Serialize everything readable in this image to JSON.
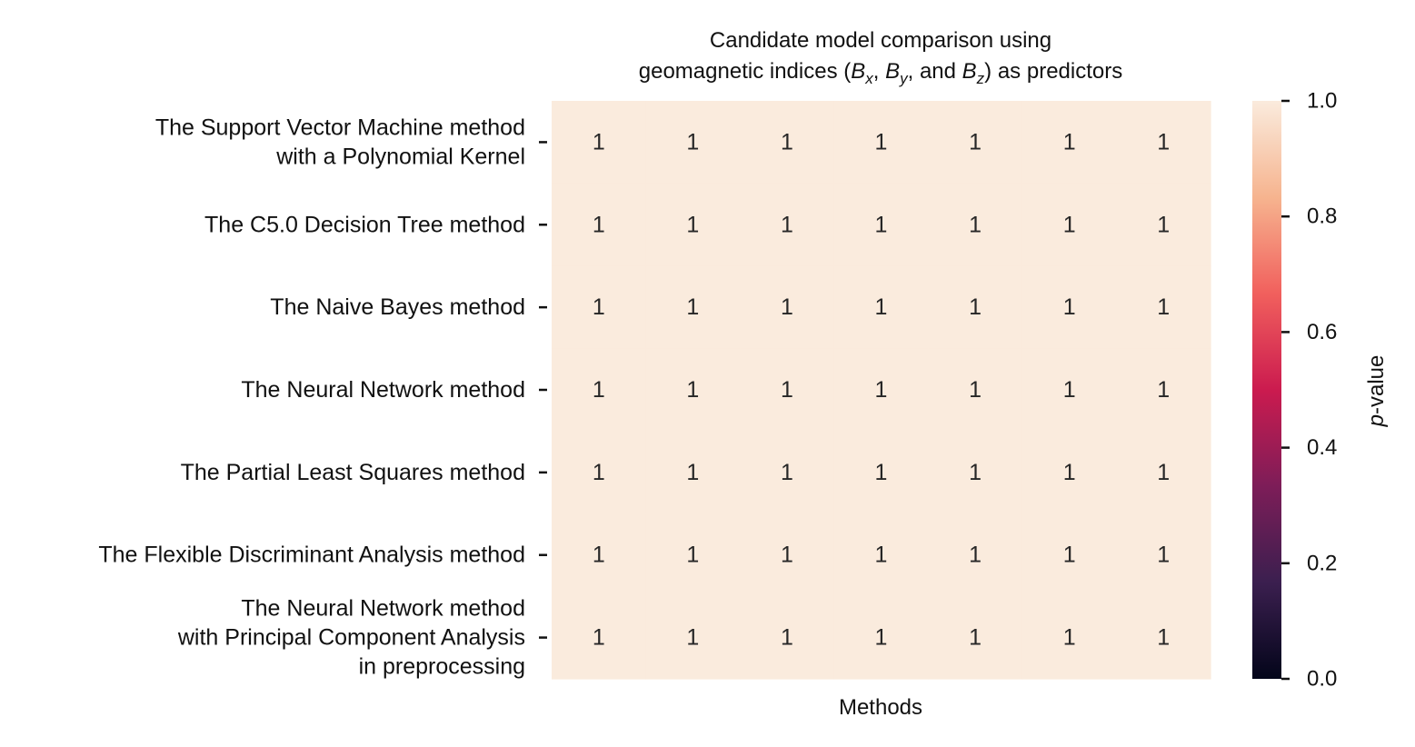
{
  "chart_data": {
    "type": "heatmap",
    "title": {
      "line1": "Candidate model comparison using",
      "line2": {
        "pre": "geomagnetic indices (",
        "bx": "B",
        "bx_sub": "x",
        "sep1": ", ",
        "by": "B",
        "by_sub": "y",
        "sep2": ", and ",
        "bz": "B",
        "bz_sub": "z",
        "post": ") as predictors"
      }
    },
    "xlabel": "Methods",
    "rows": [
      [
        "The Support Vector Machine method",
        "with a Polynomial Kernel"
      ],
      [
        "The C5.0 Decision Tree method"
      ],
      [
        "The Naive Bayes method"
      ],
      [
        "The Neural Network method"
      ],
      [
        "The Partial Least Squares method"
      ],
      [
        "The Flexible Discriminant Analysis method"
      ],
      [
        "The Neural Network method",
        "with Principal Component Analysis",
        "in preprocessing"
      ]
    ],
    "columns": 7,
    "values": [
      [
        1,
        1,
        1,
        1,
        1,
        1,
        1
      ],
      [
        1,
        1,
        1,
        1,
        1,
        1,
        1
      ],
      [
        1,
        1,
        1,
        1,
        1,
        1,
        1
      ],
      [
        1,
        1,
        1,
        1,
        1,
        1,
        1
      ],
      [
        1,
        1,
        1,
        1,
        1,
        1,
        1
      ],
      [
        1,
        1,
        1,
        1,
        1,
        1,
        1
      ],
      [
        1,
        1,
        1,
        1,
        1,
        1,
        1
      ]
    ],
    "vmin": 0,
    "vmax": 1,
    "colorbar": {
      "label_italic": "p",
      "label_rest": "-value",
      "ticks": [
        "0.0",
        "0.2",
        "0.4",
        "0.6",
        "0.8",
        "1.0"
      ],
      "colormap": [
        "#03051a",
        "#3b1f4f",
        "#7d1d58",
        "#cb1b4f",
        "#f1605d",
        "#f6b48f",
        "#faebdd"
      ]
    }
  }
}
